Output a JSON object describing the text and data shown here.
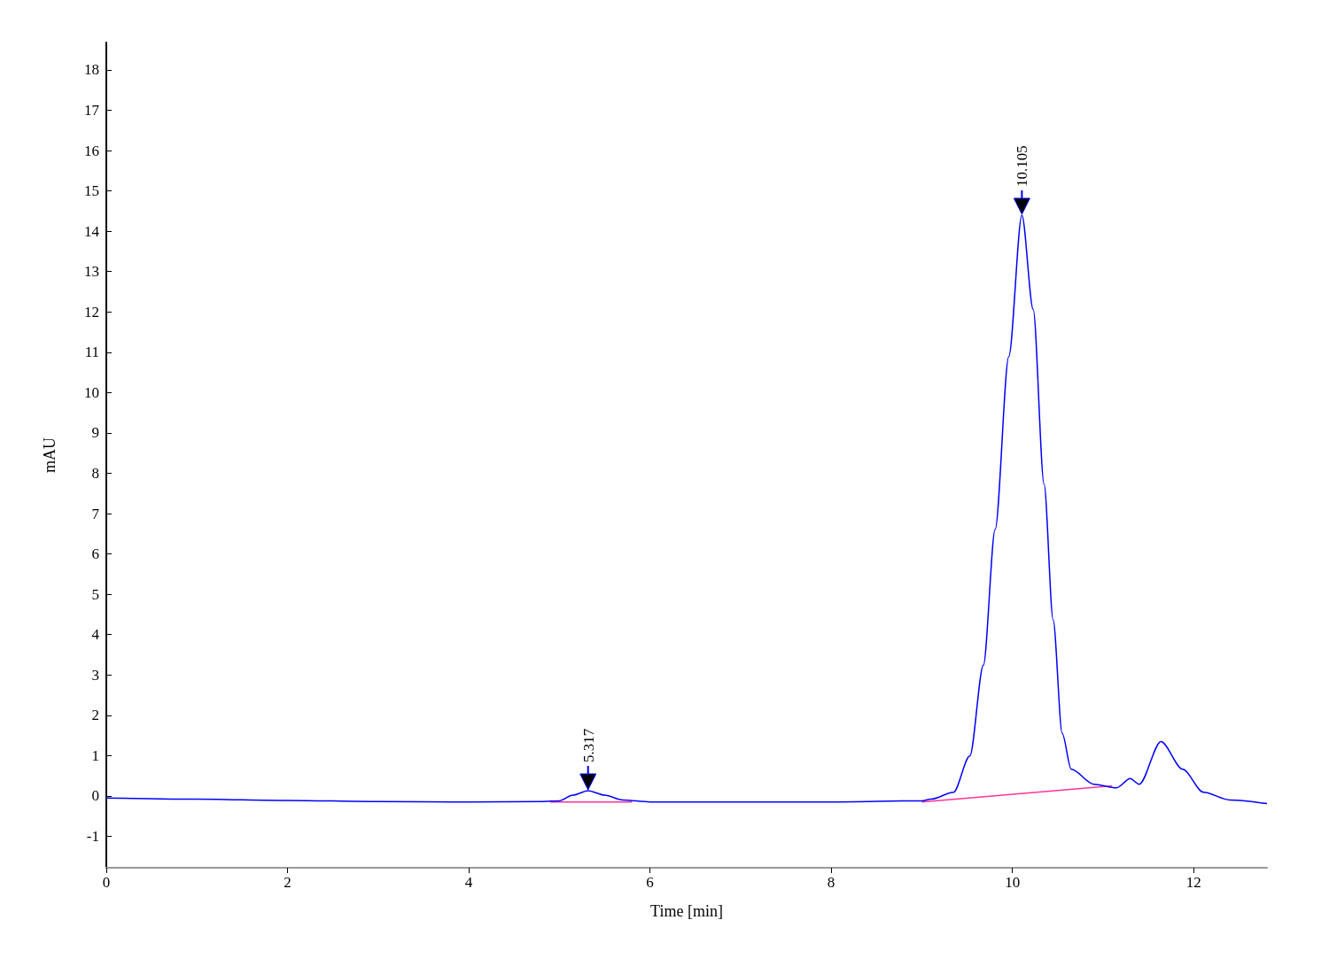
{
  "chart_data": {
    "type": "line",
    "xlabel": "Time [min]",
    "ylabel": "mAU",
    "xlim": [
      0,
      12.81
    ],
    "xticks": [
      0,
      2,
      4,
      6,
      8,
      10,
      12
    ],
    "ylim": [
      -1.78,
      18.68
    ],
    "yticks": [
      -1,
      0,
      1,
      2,
      3,
      4,
      5,
      6,
      7,
      8,
      9,
      10,
      11,
      12,
      13,
      14,
      15,
      16,
      17,
      18
    ],
    "grid": false,
    "marker": "none",
    "line_style": "solid",
    "series": [
      {
        "color": "#0000ff",
        "x": [
          0,
          1,
          2,
          3,
          4,
          4.8,
          5.0,
          5.15,
          5.317,
          5.5,
          5.7,
          6,
          7,
          8,
          9.0,
          9.1,
          9.35,
          9.53,
          9.68,
          9.81,
          9.96,
          10.105,
          10.23,
          10.35,
          10.45,
          10.55,
          10.65,
          10.9,
          11.15,
          11.3,
          11.4,
          11.64,
          11.88,
          12.11,
          12.4,
          12.81
        ],
        "values": [
          -0.05,
          -0.08,
          -0.11,
          -0.14,
          -0.15,
          -0.14,
          -0.12,
          0.02,
          0.13,
          0.02,
          -0.1,
          -0.15,
          -0.15,
          -0.15,
          -0.12,
          -0.08,
          0.09,
          0.99,
          3.24,
          6.61,
          10.89,
          14.4,
          12.06,
          7.73,
          4.36,
          1.55,
          0.66,
          0.29,
          0.2,
          0.43,
          0.29,
          1.35,
          0.66,
          0.09,
          -0.1,
          -0.19
        ]
      },
      {
        "color": "#ff3399",
        "x": [
          4.9,
          5.8
        ],
        "values": [
          -0.15,
          -0.15
        ]
      },
      {
        "color": "#ff3399",
        "x": [
          9.0,
          11.1
        ],
        "values": [
          -0.15,
          0.25
        ]
      }
    ],
    "annotations": [
      {
        "text": "5.317",
        "x": 5.317,
        "y": 0.13
      },
      {
        "text": "10.105",
        "x": 10.105,
        "y": 14.4
      }
    ]
  }
}
